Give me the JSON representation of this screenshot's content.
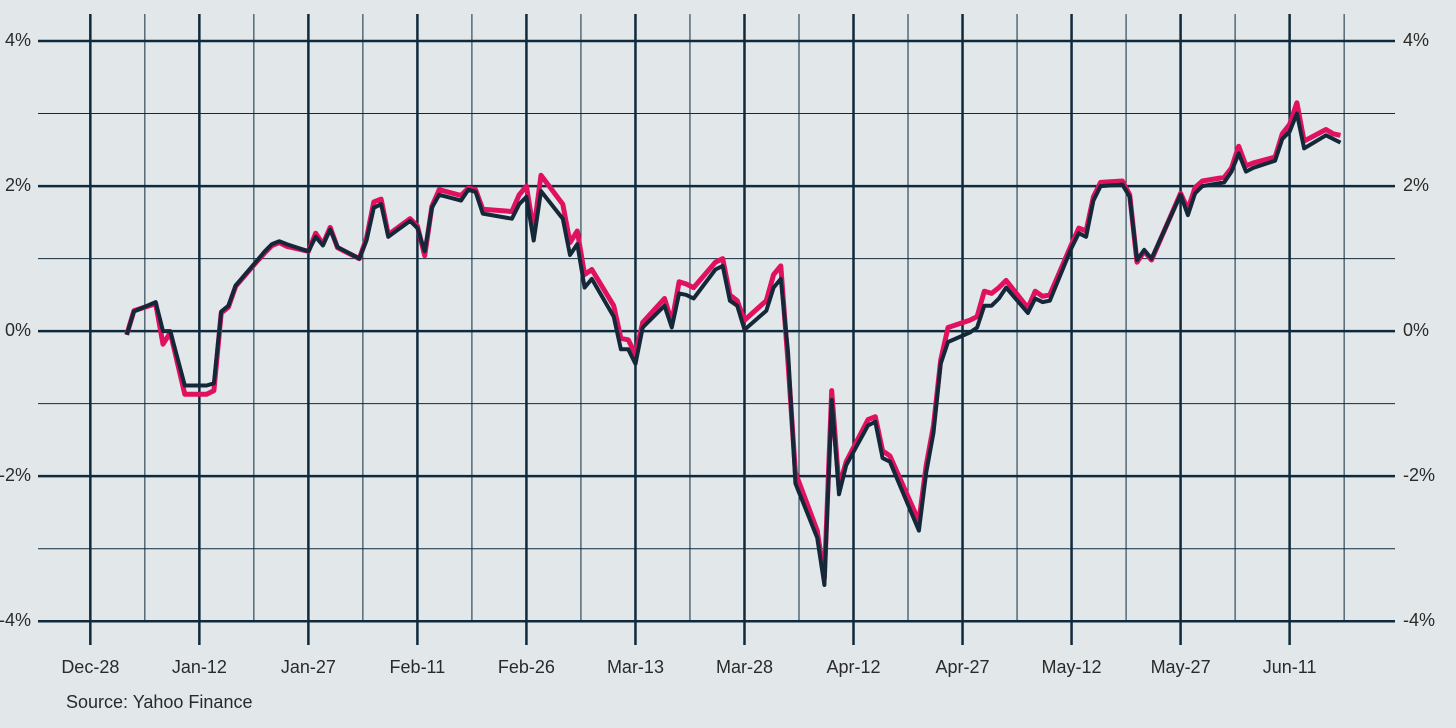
{
  "chart_data": {
    "type": "line",
    "source": "Source: Yahoo Finance",
    "x": [
      5,
      6,
      9,
      10,
      11,
      13,
      16,
      17,
      18,
      19,
      20,
      23,
      24,
      25,
      26,
      27,
      30,
      31,
      32,
      33,
      34,
      37,
      38,
      39,
      40,
      41,
      44,
      45,
      46,
      47,
      48,
      51,
      52,
      53,
      54,
      58,
      59,
      60,
      61,
      62,
      65,
      66,
      67,
      68,
      69,
      72,
      73,
      74,
      75,
      76,
      79,
      80,
      81,
      82,
      83,
      86,
      87,
      88,
      89,
      90,
      93,
      94,
      95,
      96,
      97,
      100,
      101,
      102,
      103,
      104,
      107,
      108,
      109,
      110,
      114,
      115,
      116,
      117,
      118,
      121,
      122,
      123,
      124,
      125,
      126,
      129,
      130,
      131,
      132,
      135,
      136,
      137,
      138,
      139,
      142,
      143,
      144,
      145,
      146,
      150,
      151,
      152,
      153,
      156,
      157,
      158,
      159,
      160,
      163,
      164,
      165,
      166,
      167,
      170,
      171,
      172
    ],
    "series": [
      {
        "color": "#e0115f",
        "values": [
          -0.05,
          0.28,
          0.38,
          -0.18,
          -0.02,
          -0.87,
          -0.87,
          -0.82,
          0.25,
          0.33,
          0.62,
          0.97,
          1.08,
          1.18,
          1.22,
          1.17,
          1.1,
          1.35,
          1.2,
          1.43,
          1.15,
          1.0,
          1.28,
          1.78,
          1.82,
          1.33,
          1.55,
          1.45,
          1.04,
          1.72,
          1.95,
          1.87,
          1.97,
          1.95,
          1.68,
          1.65,
          1.88,
          2.0,
          1.38,
          2.15,
          1.75,
          1.22,
          1.38,
          0.78,
          0.85,
          0.35,
          -0.1,
          -0.12,
          -0.32,
          0.12,
          0.45,
          0.12,
          0.68,
          0.65,
          0.6,
          0.95,
          1.0,
          0.5,
          0.42,
          0.15,
          0.42,
          0.78,
          0.9,
          -0.45,
          -1.95,
          -2.75,
          -3.4,
          -0.82,
          -2.15,
          -1.8,
          -1.22,
          -1.18,
          -1.65,
          -1.72,
          -2.62,
          -1.85,
          -1.3,
          -0.4,
          0.05,
          0.15,
          0.2,
          0.55,
          0.52,
          0.6,
          0.7,
          0.32,
          0.55,
          0.48,
          0.5,
          1.2,
          1.42,
          1.38,
          1.85,
          2.05,
          2.07,
          1.88,
          0.95,
          1.1,
          0.98,
          1.9,
          1.68,
          1.98,
          2.07,
          2.12,
          2.25,
          2.55,
          2.28,
          2.32,
          2.4,
          2.72,
          2.85,
          3.15,
          2.62,
          2.78,
          2.72,
          2.7
        ]
      },
      {
        "color": "#14283a",
        "values": [
          -0.05,
          0.27,
          0.4,
          0.0,
          0.0,
          -0.75,
          -0.75,
          -0.72,
          0.27,
          0.35,
          0.63,
          0.98,
          1.1,
          1.2,
          1.24,
          1.2,
          1.1,
          1.3,
          1.18,
          1.4,
          1.16,
          1.0,
          1.25,
          1.7,
          1.75,
          1.3,
          1.52,
          1.42,
          1.1,
          1.7,
          1.88,
          1.8,
          1.95,
          1.92,
          1.62,
          1.55,
          1.75,
          1.85,
          1.25,
          1.93,
          1.55,
          1.05,
          1.2,
          0.6,
          0.72,
          0.2,
          -0.25,
          -0.25,
          -0.45,
          0.05,
          0.35,
          0.05,
          0.52,
          0.5,
          0.45,
          0.85,
          0.9,
          0.42,
          0.35,
          0.02,
          0.28,
          0.6,
          0.72,
          -0.3,
          -2.1,
          -2.85,
          -3.5,
          -0.95,
          -2.25,
          -1.85,
          -1.3,
          -1.25,
          -1.75,
          -1.8,
          -2.75,
          -1.95,
          -1.4,
          -0.45,
          -0.15,
          -0.02,
          0.05,
          0.35,
          0.35,
          0.45,
          0.6,
          0.25,
          0.45,
          0.4,
          0.42,
          1.15,
          1.35,
          1.3,
          1.8,
          2.0,
          2.02,
          1.85,
          0.98,
          1.12,
          1.0,
          1.88,
          1.6,
          1.9,
          2.0,
          2.05,
          2.2,
          2.45,
          2.2,
          2.25,
          2.35,
          2.65,
          2.75,
          3.0,
          2.52,
          2.7,
          2.65,
          2.6
        ]
      }
    ],
    "xlim": [
      -7.2,
      179.5
    ],
    "xticks": [
      {
        "value": 0,
        "label": "Dec-28"
      },
      {
        "value": 15,
        "label": "Jan-12"
      },
      {
        "value": 30,
        "label": "Jan-27"
      },
      {
        "value": 45,
        "label": "Feb-11"
      },
      {
        "value": 60,
        "label": "Feb-26"
      },
      {
        "value": 75,
        "label": "Mar-13"
      },
      {
        "value": 90,
        "label": "Mar-28"
      },
      {
        "value": 105,
        "label": "Apr-12"
      },
      {
        "value": 120,
        "label": "Apr-27"
      },
      {
        "value": 135,
        "label": "May-12"
      },
      {
        "value": 150,
        "label": "May-27"
      },
      {
        "value": 165,
        "label": "Jun-11"
      }
    ],
    "xticks_minor": [
      7.5,
      22.5,
      37.5,
      52.5,
      67.5,
      82.5,
      97.5,
      112.5,
      127.5,
      142.5,
      157.5,
      172.5
    ],
    "ylim": [
      -4.3,
      4.4
    ],
    "yticks": [
      {
        "value": -4,
        "label": "-4%"
      },
      {
        "value": -2,
        "label": "-2%"
      },
      {
        "value": 0,
        "label": "0%"
      },
      {
        "value": 2,
        "label": "2%"
      },
      {
        "value": 4,
        "label": "4%"
      }
    ],
    "yticks_minor": [
      -3,
      -1,
      1,
      3
    ],
    "grid": true
  }
}
